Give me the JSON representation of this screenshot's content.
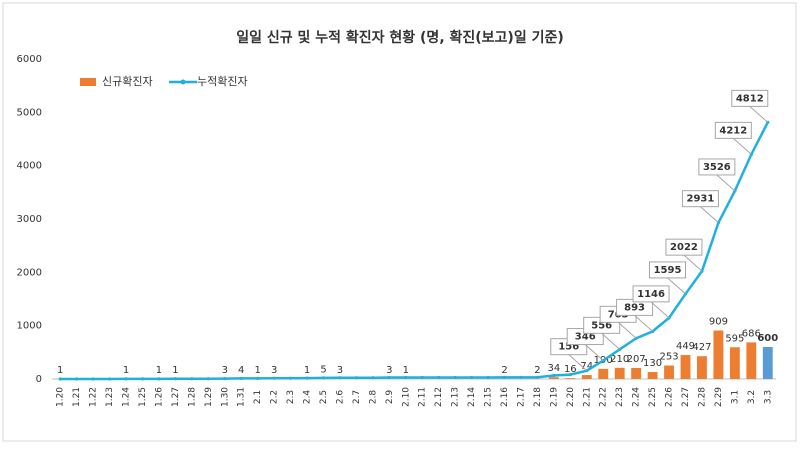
{
  "chart_data": {
    "type": "bar-line",
    "title": "일일 신규 및 누적 확진자 현황 (명, 확진(보고)일 기준)",
    "categories": [
      "1.20",
      "1.21",
      "1.22",
      "1.23",
      "1.24",
      "1.25",
      "1.26",
      "1.27",
      "1.28",
      "1.29",
      "1.30",
      "1.31",
      "2.1",
      "2.2",
      "2.3",
      "2.4",
      "2.5",
      "2.6",
      "2.7",
      "2.8",
      "2.9",
      "2.10",
      "2.11",
      "2.12",
      "2.13",
      "2.14",
      "2.15",
      "2.16",
      "2.17",
      "2.18",
      "2.19",
      "2.20",
      "2.21",
      "2.22",
      "2.23",
      "2.24",
      "2.25",
      "2.26",
      "2.27",
      "2.28",
      "2.29",
      "3.1",
      "3.2",
      "3.3"
    ],
    "series": [
      {
        "name": "신규확진자",
        "type": "bar",
        "color": "#ed7d31",
        "label_color": "#404040",
        "values": [
          1,
          0,
          0,
          0,
          1,
          0,
          1,
          1,
          0,
          0,
          3,
          4,
          1,
          3,
          0,
          1,
          5,
          3,
          0,
          0,
          3,
          1,
          0,
          0,
          0,
          0,
          0,
          2,
          0,
          2,
          34,
          16,
          74,
          190,
          210,
          207,
          130,
          253,
          449,
          427,
          909,
          595,
          686,
          600
        ],
        "value_labels": [
          "1",
          null,
          null,
          null,
          "1",
          null,
          "1",
          "1",
          null,
          null,
          "3",
          "4",
          "1",
          "3",
          null,
          "1",
          "5",
          "3",
          null,
          null,
          "3",
          "1",
          null,
          null,
          null,
          null,
          null,
          "2",
          null,
          "2",
          "34",
          "16",
          "74",
          "190",
          "210",
          "207",
          "130",
          "253",
          "449",
          "427",
          "909",
          "595",
          "686",
          "600"
        ]
      },
      {
        "name": "누적확진자",
        "type": "line",
        "color": "#1fb0e0",
        "label_color": "#2020c0",
        "values": [
          1,
          1,
          1,
          1,
          2,
          2,
          3,
          4,
          4,
          4,
          7,
          11,
          12,
          15,
          15,
          16,
          21,
          24,
          24,
          24,
          27,
          28,
          28,
          28,
          28,
          28,
          28,
          30,
          30,
          32,
          66,
          82,
          156,
          346,
          556,
          763,
          893,
          1146,
          1595,
          2022,
          2931,
          3526,
          4212,
          4812
        ],
        "value_labels": [
          null,
          null,
          null,
          null,
          null,
          null,
          null,
          null,
          null,
          null,
          null,
          null,
          null,
          null,
          null,
          null,
          null,
          null,
          null,
          null,
          null,
          null,
          null,
          null,
          null,
          null,
          null,
          null,
          null,
          null,
          null,
          null,
          "156",
          "346",
          "556",
          "763",
          "893",
          "1146",
          "1595",
          "2022",
          "2931",
          "3526",
          "4212",
          "4812"
        ]
      }
    ],
    "highlight": {
      "index": 43,
      "bar_color": "#5b9bd5",
      "label_color": "#ff0000"
    },
    "ylim": [
      0,
      6000
    ],
    "yticks": [
      0,
      1000,
      2000,
      3000,
      4000,
      5000,
      6000
    ],
    "grid": false,
    "legend": "top-left"
  }
}
